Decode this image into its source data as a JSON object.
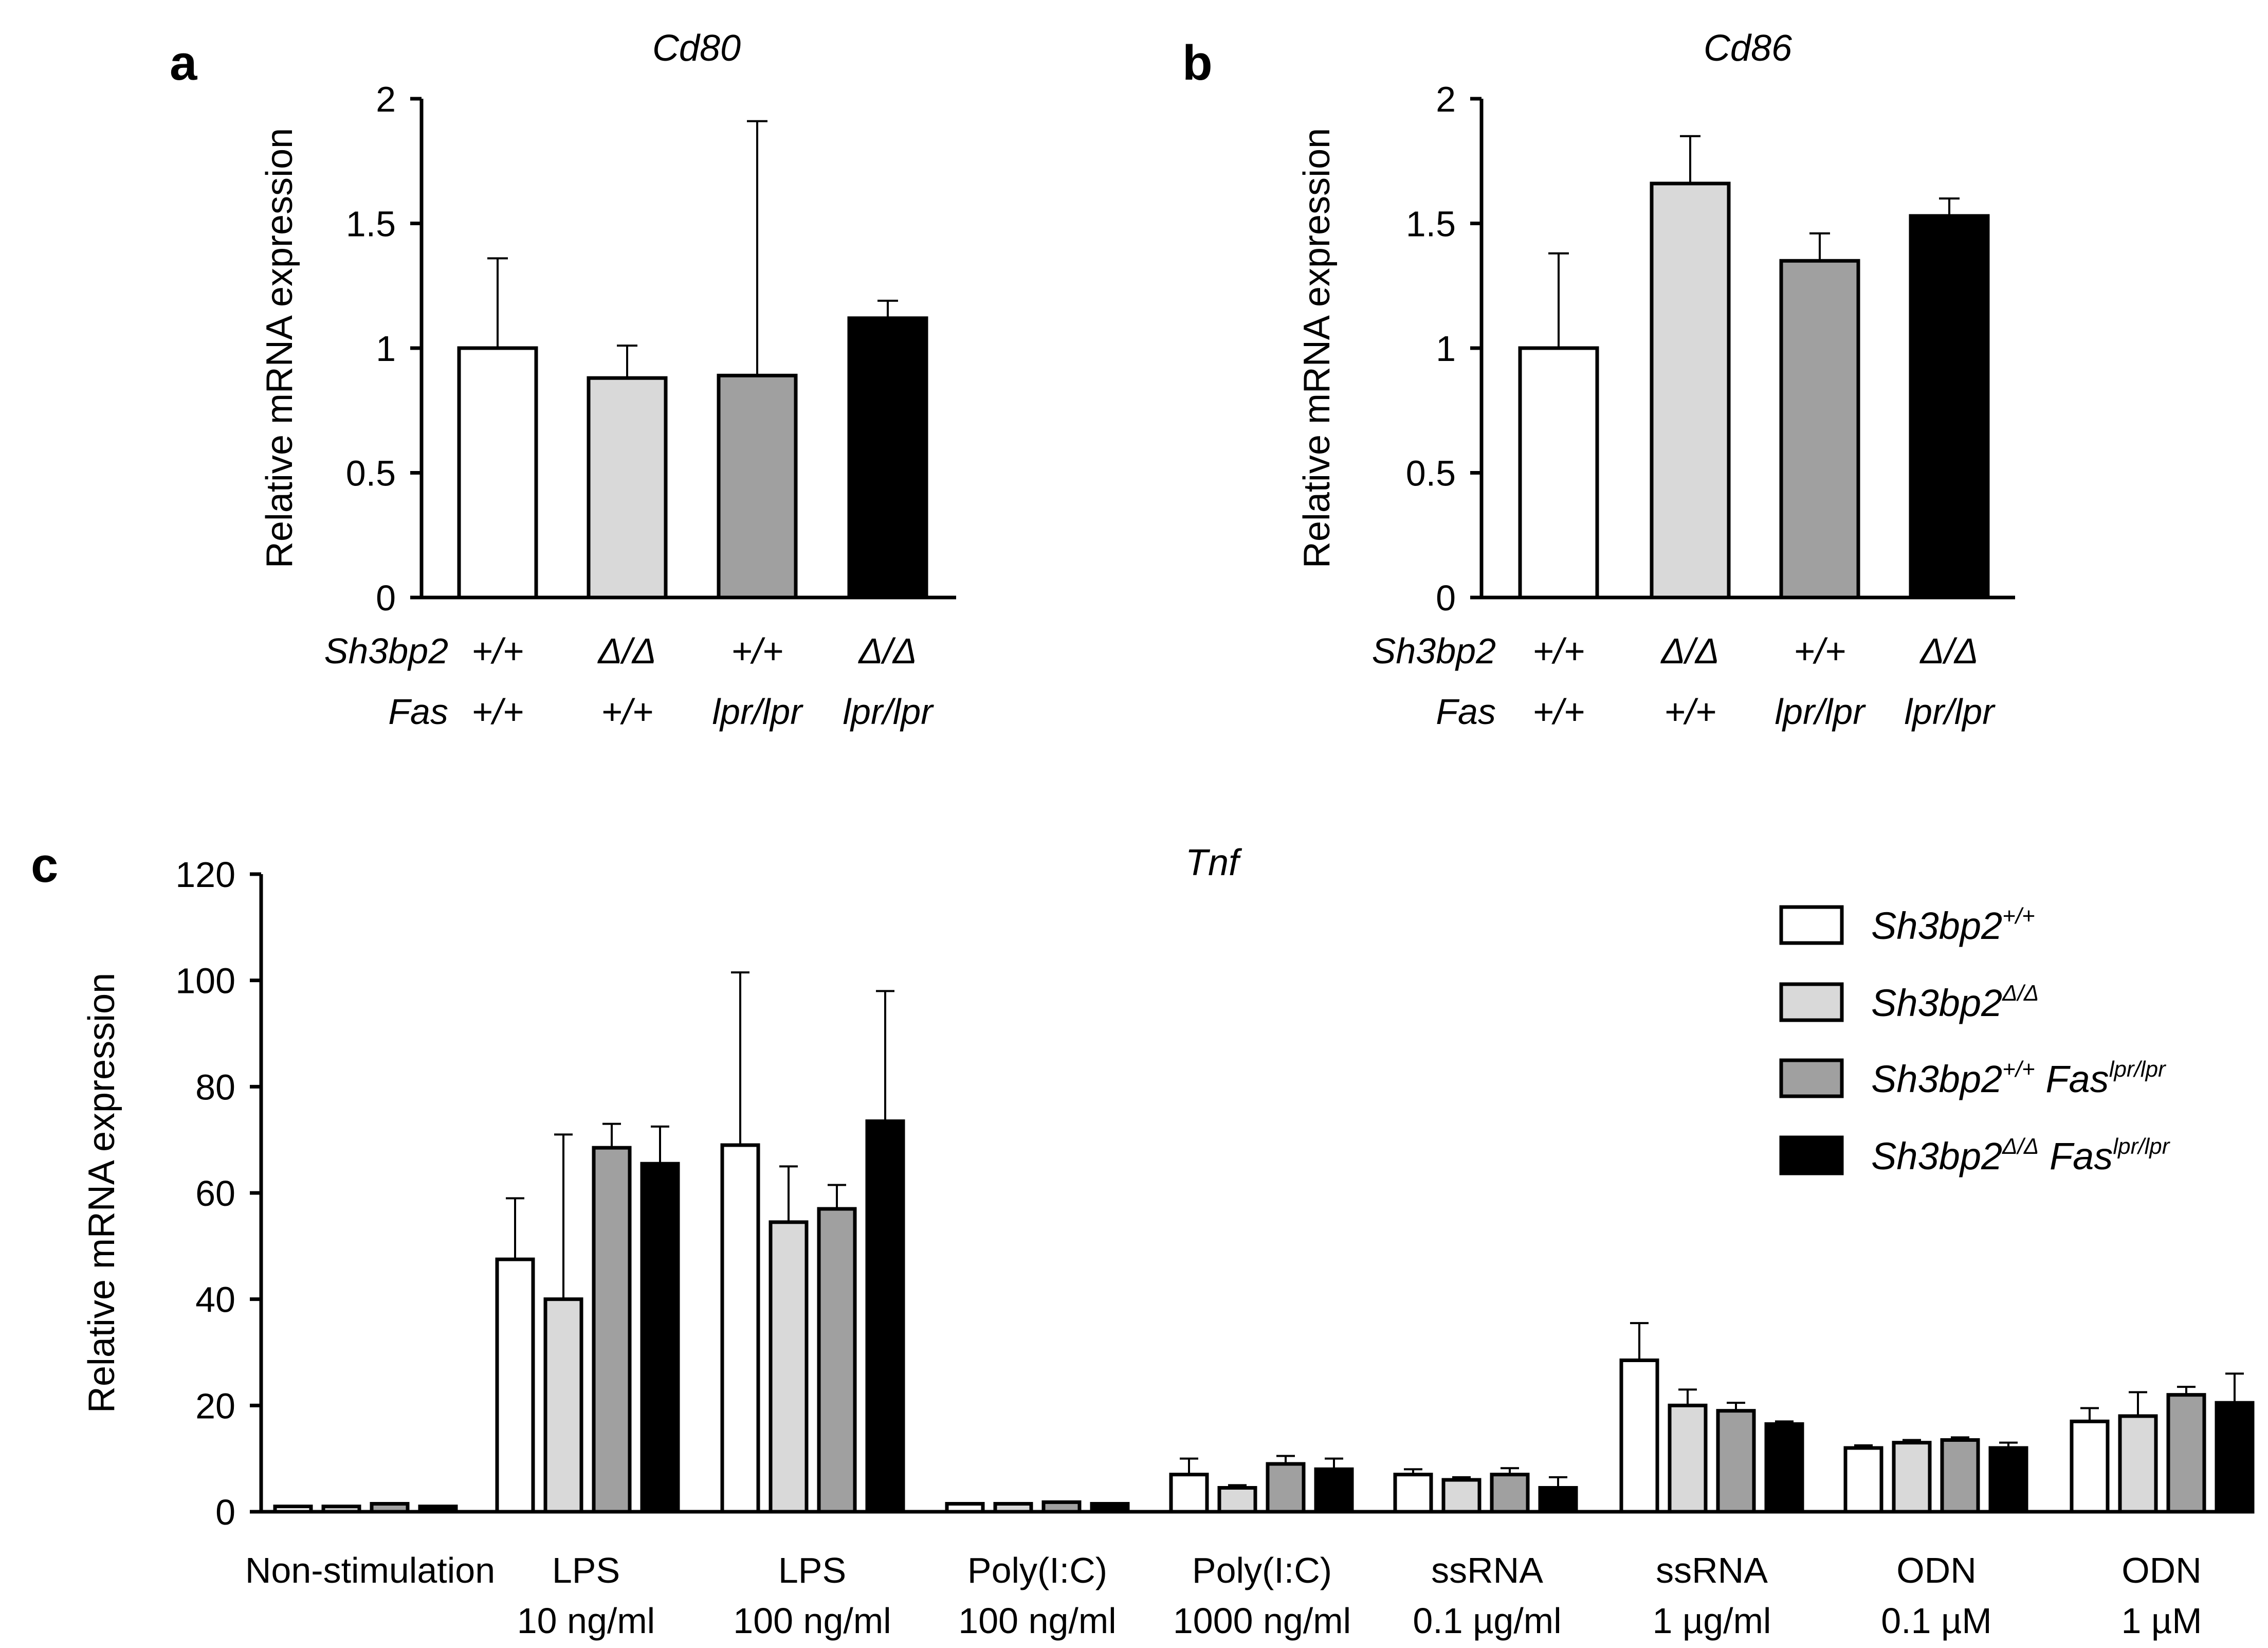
{
  "colors": {
    "wt": "#ffffff",
    "delta": "#d9d9d9",
    "lpr": "#a0a0a0",
    "delta_lpr": "#000000"
  },
  "chart_data": [
    {
      "panel": "a",
      "type": "bar",
      "title": "Cd80",
      "ylabel": "Relative mRNA expression",
      "ylim": [
        0,
        2
      ],
      "yticks": [
        0,
        0.5,
        1,
        1.5,
        2
      ],
      "ytick_labels": [
        "0",
        "0.5",
        "1",
        "1.5",
        "2"
      ],
      "row_labels": [
        "Sh3bp2",
        "Fas"
      ],
      "groups": [
        {
          "sh3bp2": "+/+",
          "fas": "+/+",
          "value": 1.0,
          "error": 0.36,
          "color": "wt"
        },
        {
          "sh3bp2": "Δ/Δ",
          "fas": "+/+",
          "value": 0.88,
          "error": 0.13,
          "color": "delta"
        },
        {
          "sh3bp2": "+/+",
          "fas": "lpr/lpr",
          "value": 0.89,
          "error": 1.02,
          "color": "lpr"
        },
        {
          "sh3bp2": "Δ/Δ",
          "fas": "lpr/lpr",
          "value": 1.12,
          "error": 0.07,
          "color": "delta_lpr"
        }
      ]
    },
    {
      "panel": "b",
      "type": "bar",
      "title": "Cd86",
      "ylabel": "Relative mRNA expression",
      "ylim": [
        0,
        2
      ],
      "yticks": [
        0,
        0.5,
        1,
        1.5,
        2
      ],
      "ytick_labels": [
        "0",
        "0.5",
        "1",
        "1.5",
        "2"
      ],
      "row_labels": [
        "Sh3bp2",
        "Fas"
      ],
      "groups": [
        {
          "sh3bp2": "+/+",
          "fas": "+/+",
          "value": 1.0,
          "error": 0.38,
          "color": "wt"
        },
        {
          "sh3bp2": "Δ/Δ",
          "fas": "+/+",
          "value": 1.66,
          "error": 0.19,
          "color": "delta"
        },
        {
          "sh3bp2": "+/+",
          "fas": "lpr/lpr",
          "value": 1.35,
          "error": 0.11,
          "color": "lpr"
        },
        {
          "sh3bp2": "Δ/Δ",
          "fas": "lpr/lpr",
          "value": 1.53,
          "error": 0.07,
          "color": "delta_lpr"
        }
      ]
    },
    {
      "panel": "c",
      "type": "bar",
      "title": "Tnf",
      "ylabel": "Relative mRNA expression",
      "ylim": [
        0,
        120
      ],
      "yticks": [
        0,
        20,
        40,
        60,
        80,
        100,
        120
      ],
      "ytick_labels": [
        "0",
        "20",
        "40",
        "60",
        "80",
        "100",
        "120"
      ],
      "legend_position": "top-right",
      "categories": [
        [
          "Non-stimulation"
        ],
        [
          "LPS",
          "10 ng/ml"
        ],
        [
          "LPS",
          "100 ng/ml"
        ],
        [
          "Poly(I:C)",
          "100 ng/ml"
        ],
        [
          "Poly(I:C)",
          "1000 ng/ml"
        ],
        [
          "ssRNA",
          "0.1 µg/ml"
        ],
        [
          "ssRNA",
          "1 µg/ml"
        ],
        [
          "ODN",
          "0.1 µM"
        ],
        [
          "ODN",
          "1 µM"
        ]
      ],
      "series": [
        {
          "name": "Sh3bp2",
          "sup": "+/+",
          "name2": "",
          "sup2": "",
          "color": "wt",
          "values": [
            1,
            47.5,
            69,
            1.5,
            7,
            7,
            28.5,
            12,
            17
          ],
          "errors": [
            0,
            11.5,
            32.5,
            0,
            3,
            1,
            7,
            0.5,
            2.5
          ]
        },
        {
          "name": "Sh3bp2",
          "sup": "Δ/Δ",
          "name2": "",
          "sup2": "",
          "color": "delta",
          "values": [
            1,
            40,
            54.5,
            1.5,
            4.5,
            6,
            20,
            13,
            18
          ],
          "errors": [
            0,
            31,
            10.5,
            0,
            0.5,
            0.5,
            3,
            0.5,
            4.5
          ]
        },
        {
          "name": "Sh3bp2",
          "sup": "+/+",
          "name2": "Fas",
          "sup2": "lpr/lpr",
          "color": "lpr",
          "values": [
            1.5,
            68.5,
            57,
            1.8,
            9,
            7,
            19,
            13.5,
            22
          ],
          "errors": [
            0,
            4.5,
            4.5,
            0,
            1.5,
            1.2,
            1.5,
            0.5,
            1.5
          ]
        },
        {
          "name": "Sh3bp2",
          "sup": "Δ/Δ",
          "name2": "Fas",
          "sup2": "lpr/lpr",
          "color": "delta_lpr",
          "values": [
            1,
            65.5,
            73.5,
            1.5,
            8,
            4.5,
            16.5,
            12,
            20.5
          ],
          "errors": [
            0,
            7,
            24.5,
            0,
            2,
            2,
            0.5,
            1,
            5.5
          ]
        }
      ]
    }
  ]
}
